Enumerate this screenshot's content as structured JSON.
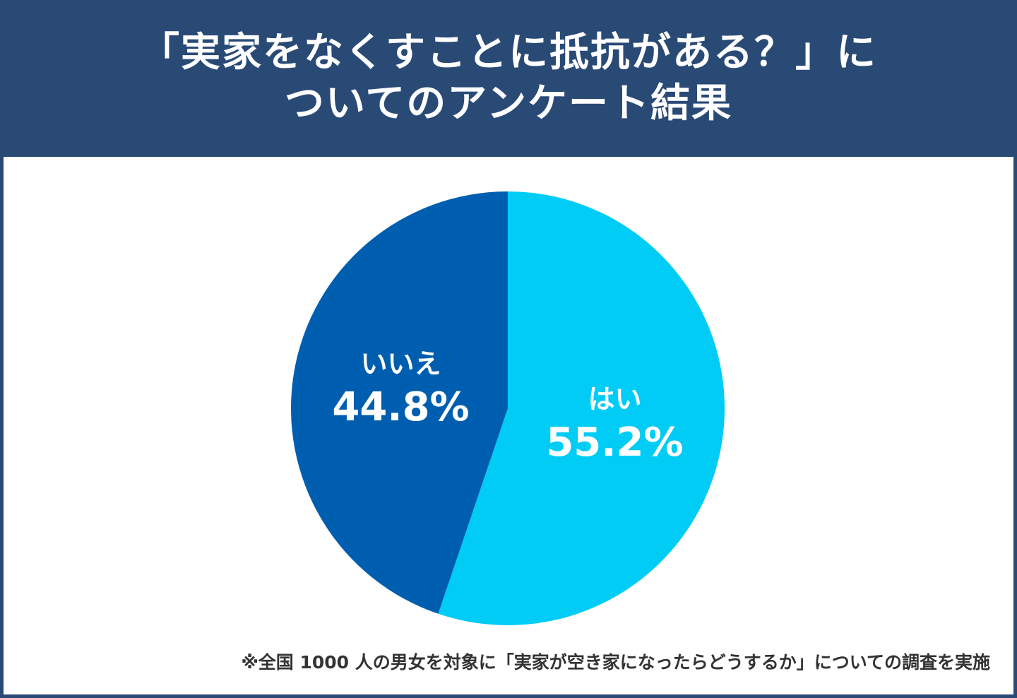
{
  "title_line1": "「実家をなくすことに抵抗がある？」に",
  "title_line2": "ついてのアンケート結果",
  "footnote": "※全国 1000 人の男女を対象に「実家が空き家になったらどうするか」についての調査を実施",
  "colors": {
    "header": "#2a4a76",
    "yes": "#00ccf5",
    "no": "#005eb0"
  },
  "chart_data": {
    "type": "pie",
    "start": "top, clockwise",
    "slices": [
      {
        "label": "はい",
        "value": 55.2,
        "value_label": "55.2%",
        "color": "#00ccf5"
      },
      {
        "label": "いいえ",
        "value": 44.8,
        "value_label": "44.8%",
        "color": "#005eb0"
      }
    ]
  }
}
